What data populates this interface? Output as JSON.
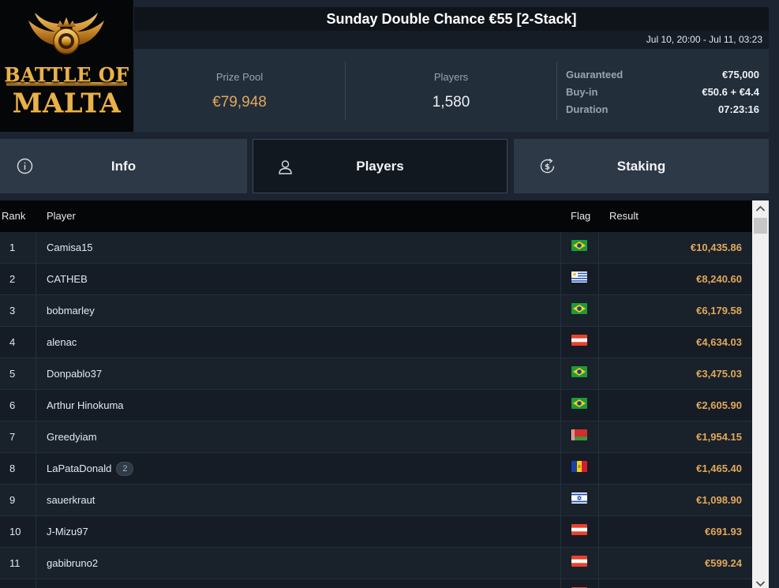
{
  "logo": {
    "line1": "BATTLE OF",
    "line2": "MALTA"
  },
  "header": {
    "title": "Sunday Double Chance €55 [2-Stack]",
    "date_range": "Jul 10, 20:00 - Jul 11, 03:23"
  },
  "stats": {
    "prize_pool_label": "Prize Pool",
    "prize_pool_value": "€79,948",
    "players_label": "Players",
    "players_value": "1,580"
  },
  "details": {
    "guaranteed_label": "Guaranteed",
    "guaranteed_value": "€75,000",
    "buyin_label": "Buy-in",
    "buyin_value": "€50.6 + €4.4",
    "duration_label": "Duration",
    "duration_value": "07:23:16"
  },
  "tabs": {
    "info": "Info",
    "players": "Players",
    "staking": "Staking",
    "active": "players"
  },
  "table": {
    "columns": {
      "rank": "Rank",
      "player": "Player",
      "flag": "Flag",
      "result": "Result"
    },
    "rows": [
      {
        "rank": "1",
        "player": "Camisa15",
        "badge": "",
        "flag": "brazil",
        "result": "€10,435.86"
      },
      {
        "rank": "2",
        "player": "CATHEB",
        "badge": "",
        "flag": "uruguay",
        "result": "€8,240.60"
      },
      {
        "rank": "3",
        "player": "bobmarley",
        "badge": "",
        "flag": "brazil",
        "result": "€6,179.58"
      },
      {
        "rank": "4",
        "player": "alenac",
        "badge": "",
        "flag": "austria",
        "result": "€4,634.03"
      },
      {
        "rank": "5",
        "player": "Donpablo37",
        "badge": "",
        "flag": "brazil",
        "result": "€3,475.03"
      },
      {
        "rank": "6",
        "player": "Arthur Hinokuma",
        "badge": "",
        "flag": "brazil",
        "result": "€2,605.90"
      },
      {
        "rank": "7",
        "player": "Greedyiam",
        "badge": "",
        "flag": "belarus",
        "result": "€1,954.15"
      },
      {
        "rank": "8",
        "player": "LaPataDonald",
        "badge": "2",
        "flag": "andorra",
        "result": "€1,465.40"
      },
      {
        "rank": "9",
        "player": "sauerkraut",
        "badge": "",
        "flag": "israel",
        "result": "€1,098.90"
      },
      {
        "rank": "10",
        "player": "J-Mizu97",
        "badge": "",
        "flag": "austria",
        "result": "€691.93"
      },
      {
        "rank": "11",
        "player": "gabibruno2",
        "badge": "",
        "flag": "austria",
        "result": "€599.24"
      },
      {
        "rank": "",
        "player": "",
        "badge": "",
        "flag": "austria",
        "result": ""
      }
    ]
  },
  "colors": {
    "accent_gold": "#e0a85a",
    "background": "#1b2430",
    "header_dark": "#0f141b"
  }
}
